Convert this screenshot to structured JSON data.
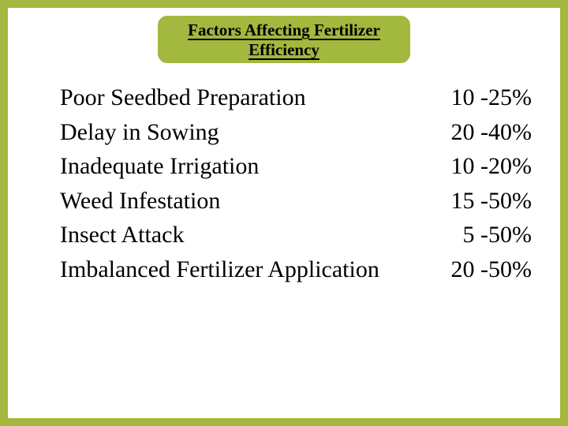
{
  "title": "Factors Affecting Fertilizer Efficiency",
  "rows": [
    {
      "factor": "Poor Seedbed Preparation",
      "value": "10 -25%"
    },
    {
      "factor": "Delay in Sowing",
      "value": "20 -40%"
    },
    {
      "factor": "Inadequate Irrigation",
      "value": "10 -20%"
    },
    {
      "factor": "Weed Infestation",
      "value": "15 -50%"
    },
    {
      "factor": "Insect Attack",
      "value": "5 -50%"
    },
    {
      "factor": "Imbalanced Fertilizer Application",
      "value": "20 -50%"
    }
  ],
  "colors": {
    "accent": "#a2b83e",
    "background": "#ffffff",
    "text": "#000000"
  },
  "typography": {
    "title_fontsize": 21,
    "body_fontsize": 30,
    "font_family": "Times New Roman"
  }
}
